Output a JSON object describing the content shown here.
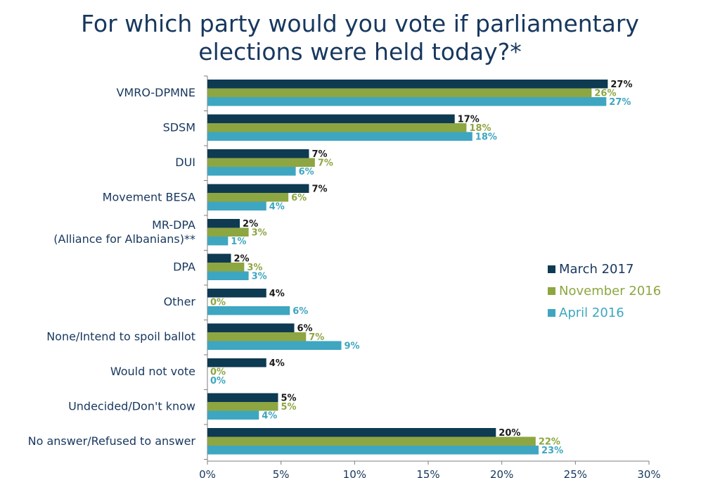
{
  "chart_data": {
    "type": "bar",
    "orientation": "horizontal",
    "title_lines": [
      "For which party would you vote if parliamentary",
      "elections were held today?*"
    ],
    "categories": [
      [
        "VMRO-DPMNE"
      ],
      [
        "SDSM"
      ],
      [
        "DUI"
      ],
      [
        "Movement BESA"
      ],
      [
        "MR-DPA",
        "(Alliance for Albanians)**"
      ],
      [
        "DPA"
      ],
      [
        "Other"
      ],
      [
        "None/Intend to spoil ballot"
      ],
      [
        "Would not vote"
      ],
      [
        "Undecided/Don't know"
      ],
      [
        "No answer/Refused to answer"
      ]
    ],
    "series": [
      {
        "name": "March 2017",
        "color": "#0e3a52",
        "values": [
          27,
          17,
          7,
          7,
          2,
          2,
          4,
          6,
          4,
          5,
          20
        ],
        "bar_values": [
          27.2,
          16.8,
          6.9,
          6.9,
          2.2,
          1.6,
          4.0,
          5.9,
          4.0,
          4.8,
          19.6
        ]
      },
      {
        "name": "November 2016",
        "color": "#8da641",
        "values": [
          26,
          18,
          7,
          6,
          3,
          3,
          0,
          7,
          0,
          5,
          22
        ],
        "bar_values": [
          26.1,
          17.6,
          7.3,
          5.5,
          2.8,
          2.5,
          0,
          6.7,
          0,
          4.8,
          22.3
        ]
      },
      {
        "name": "April 2016",
        "color": "#3ea6c1",
        "values": [
          27,
          18,
          6,
          4,
          1,
          3,
          6,
          9,
          0,
          4,
          23
        ],
        "bar_values": [
          27.1,
          18.0,
          6.0,
          4.0,
          1.4,
          2.8,
          5.6,
          9.1,
          0,
          3.5,
          22.5
        ]
      }
    ],
    "value_suffix": "%",
    "xlim": [
      0,
      30
    ],
    "xticks": [
      "0%",
      "5%",
      "10%",
      "15%",
      "20%",
      "25%",
      "30%"
    ],
    "legend_position": "right",
    "grid": false
  }
}
